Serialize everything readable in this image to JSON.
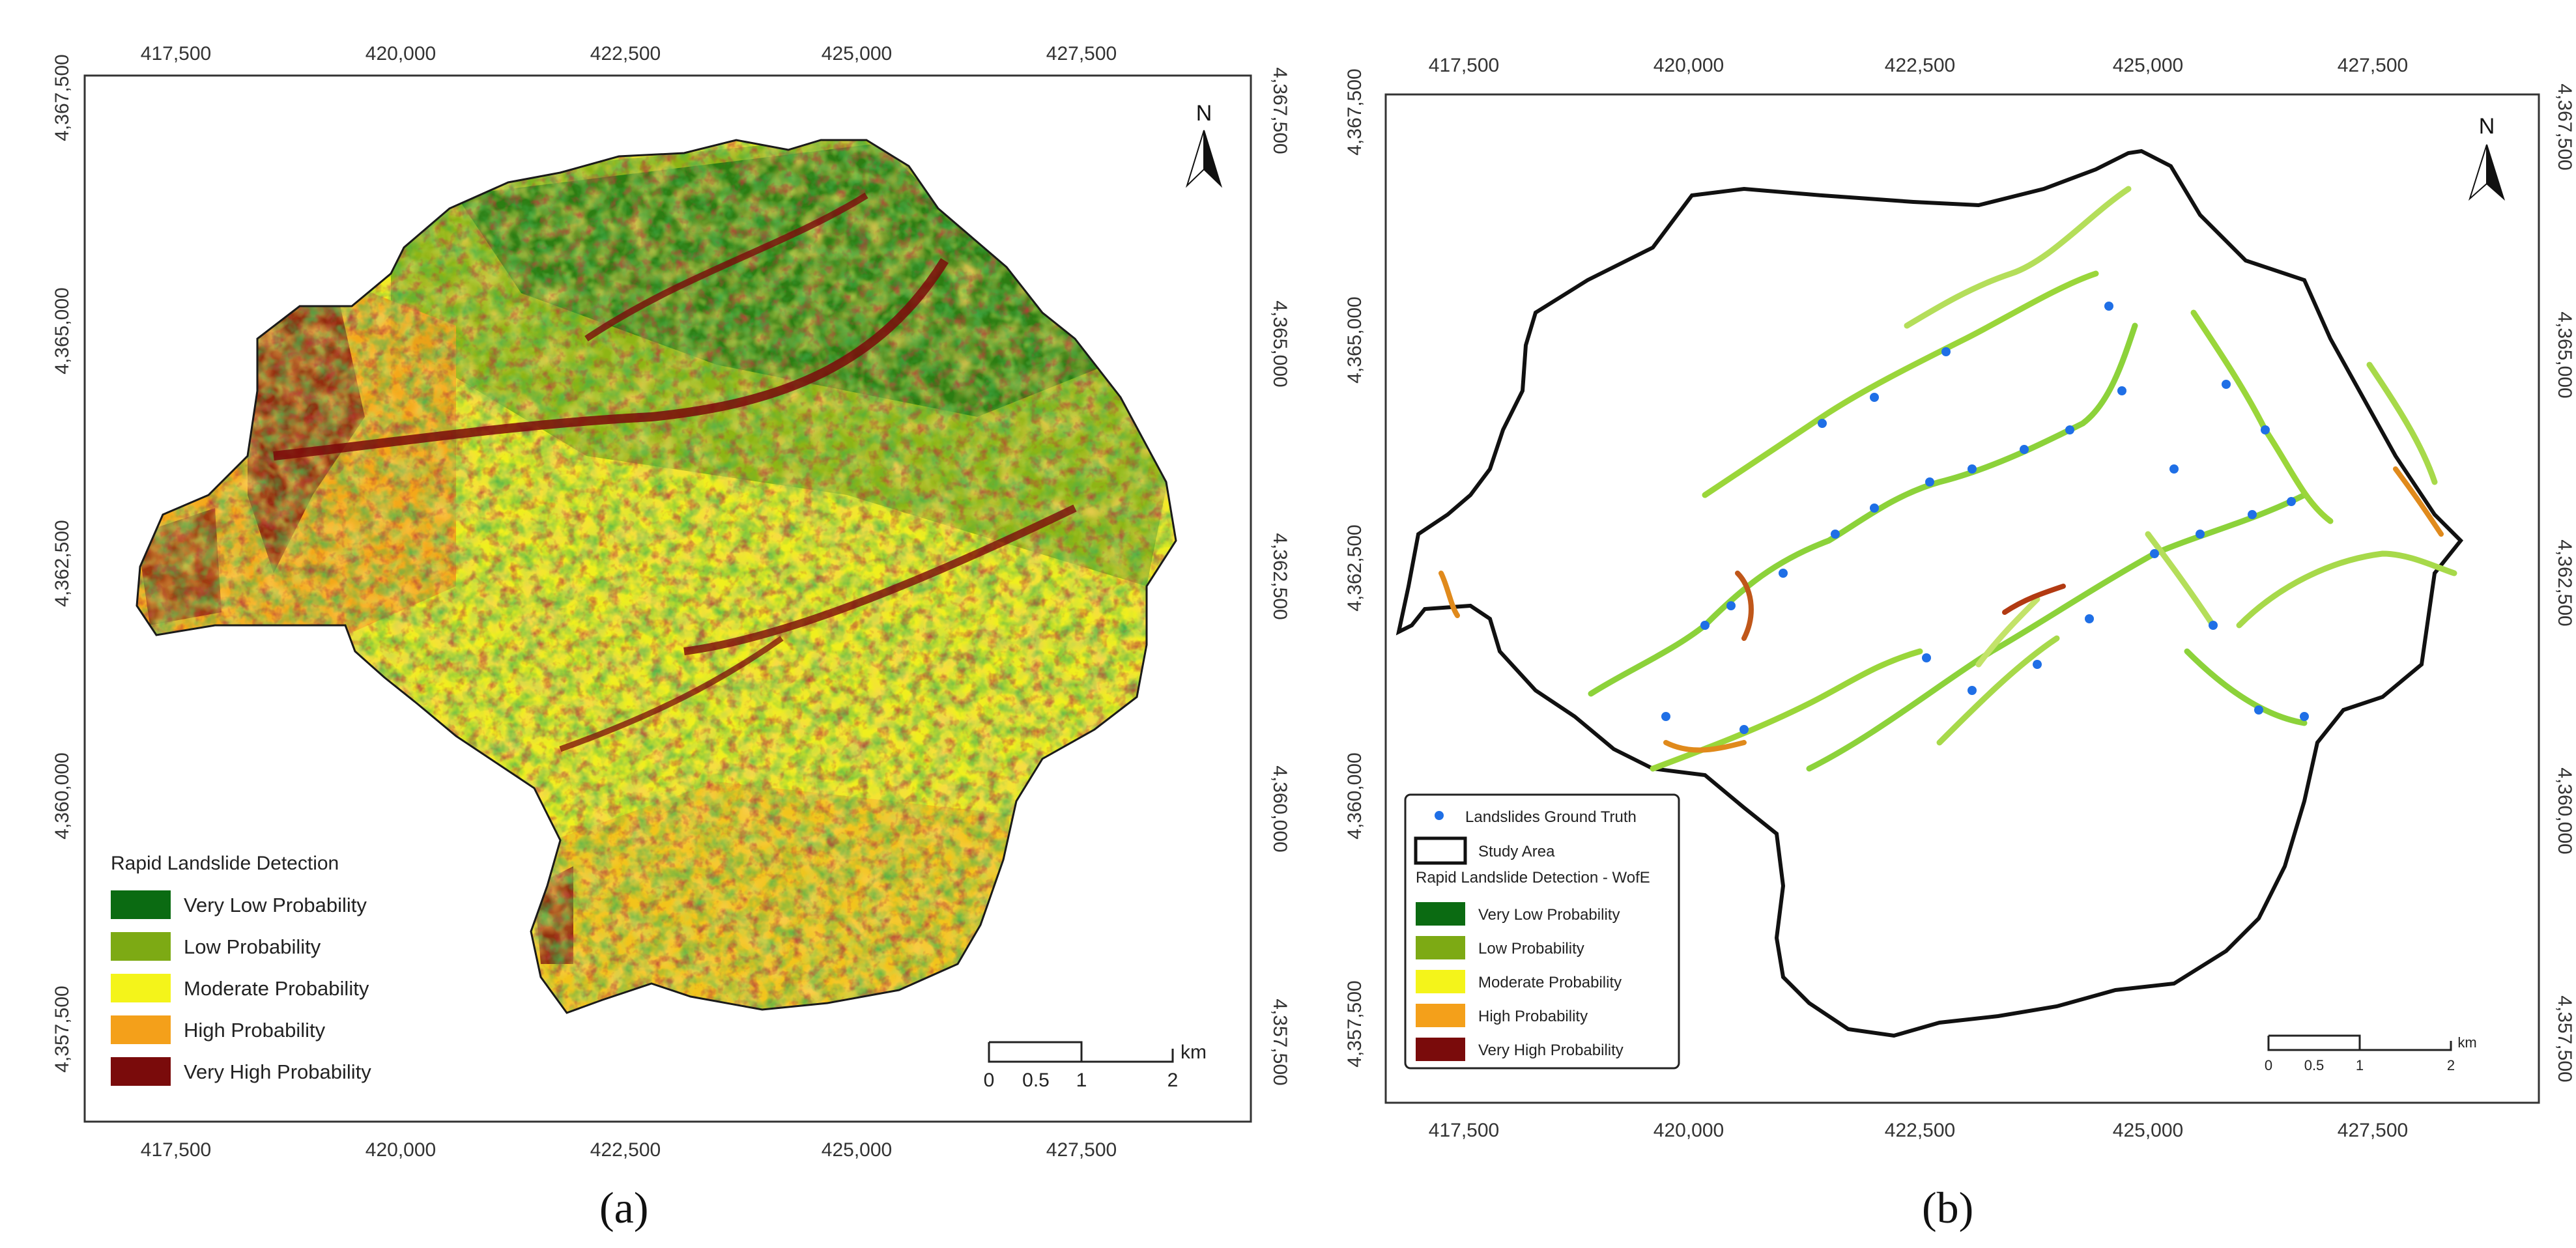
{
  "panels": [
    {
      "caption": "(a)",
      "x_ticks": [
        "417,500",
        "420,000",
        "422,500",
        "425,000",
        "427,500"
      ],
      "y_ticks": [
        "4,367,500",
        "4,365,000",
        "4,362,500",
        "4,360,000",
        "4,357,500"
      ],
      "north_label": "N",
      "legend": {
        "title": "Rapid Landslide Detection",
        "items": [
          {
            "label": "Very Low Probability",
            "color": "#0b6b12"
          },
          {
            "label": "Low Probability",
            "color": "#7daa14"
          },
          {
            "label": "Moderate Probability",
            "color": "#f4f41a"
          },
          {
            "label": "High Probability",
            "color": "#f4a01a"
          },
          {
            "label": "Very High Probability",
            "color": "#7a0b0b"
          }
        ]
      },
      "scale_bar": {
        "labels": [
          "0",
          "0.5",
          "1",
          "2"
        ],
        "unit": "km"
      }
    },
    {
      "caption": "(b)",
      "x_ticks": [
        "417,500",
        "420,000",
        "422,500",
        "425,000",
        "427,500"
      ],
      "y_ticks": [
        "4,367,500",
        "4,365,000",
        "4,362,500",
        "4,360,000",
        "4,357,500"
      ],
      "north_label": "N",
      "legend": {
        "ground_truth": "Landslides Ground Truth",
        "ground_truth_color": "#1f6fe6",
        "study_area": "Study Area",
        "title": "Rapid Landslide Detection - WofE",
        "items": [
          {
            "label": "Very Low Probability",
            "color": "#0b6b12"
          },
          {
            "label": "Low Probability",
            "color": "#7daa14"
          },
          {
            "label": "Moderate Probability",
            "color": "#f4f41a"
          },
          {
            "label": "High Probability",
            "color": "#f4a01a"
          },
          {
            "label": "Very High Probability",
            "color": "#7a0b0b"
          }
        ]
      },
      "scale_bar": {
        "labels": [
          "0",
          "0.5",
          "1",
          "2"
        ],
        "unit": "km"
      }
    }
  ]
}
